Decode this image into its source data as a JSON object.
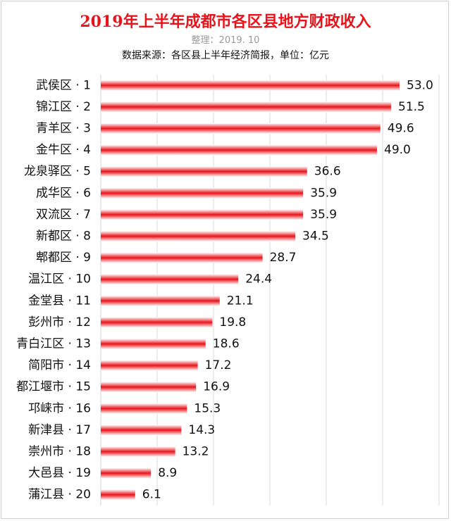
{
  "header": {
    "title": "2019年上半年成都市各区县地方财政收入",
    "subtitle": "整理：2019. 10",
    "source": "数据来源：各区县上半年经济简报，单位：亿元"
  },
  "colors": {
    "bar": "#e8141b",
    "title": "#e8141b",
    "grid": "#d9d9d9"
  },
  "chart_data": {
    "type": "bar",
    "orientation": "horizontal",
    "title": "2019年上半年成都市各区县地方财政收入",
    "categories": [
      "武侯区 · 1",
      "锦江区 · 2",
      "青羊区 · 3",
      "金牛区 · 4",
      "龙泉驿区 · 5",
      "成华区 · 6",
      "双流区 · 7",
      "新都区 · 8",
      "郫都区 · 9",
      "温江区 · 10",
      "金堂县 · 11",
      "彭州市 · 12",
      "青白江区 · 13",
      "简阳市 · 14",
      "都江堰市 · 15",
      "邛崃市 · 16",
      "新津县 · 17",
      "崇州市 · 18",
      "大邑县 · 19",
      "蒲江县 · 20"
    ],
    "values": [
      53.0,
      51.5,
      49.6,
      49.0,
      36.6,
      35.9,
      35.9,
      34.5,
      28.7,
      24.4,
      21.1,
      19.8,
      18.6,
      17.2,
      16.9,
      15.3,
      14.3,
      13.2,
      8.9,
      6.1
    ],
    "value_labels": [
      "53.0",
      "51.5",
      "49.6",
      "49.0",
      "36.6",
      "35.9",
      "35.9",
      "34.5",
      "28.7",
      "24.4",
      "21.1",
      "19.8",
      "18.6",
      "17.2",
      "16.9",
      "15.3",
      "14.3",
      "13.2",
      "8.9",
      "6.1"
    ],
    "xlim": [
      0,
      60
    ],
    "gridlines": "vertical",
    "legend": "none"
  }
}
